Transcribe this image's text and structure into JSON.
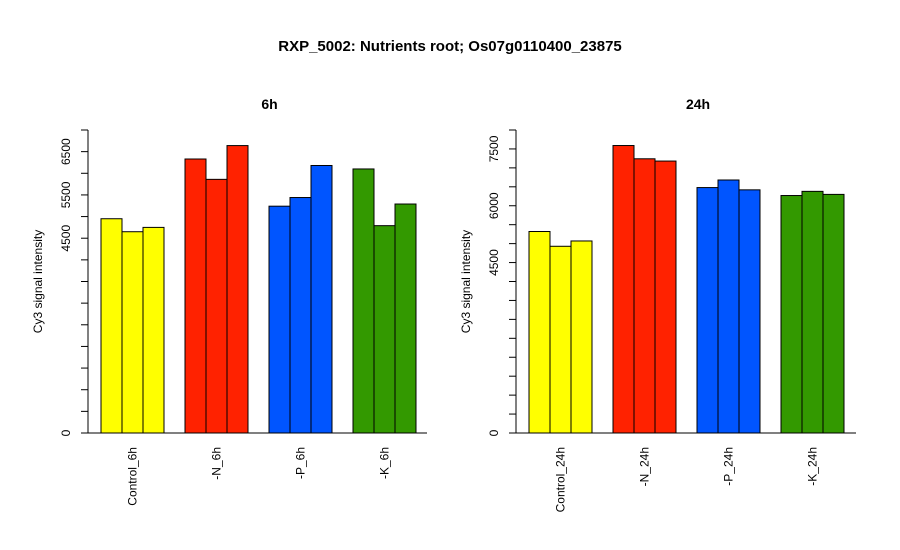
{
  "title": "RXP_5002: Nutrients root; Os07g0110400_23875",
  "chart_data": [
    {
      "type": "bar",
      "title": "6h",
      "ylabel": "Cy3 signal intensity",
      "ylim": [
        0,
        7000
      ],
      "yticks": [
        0,
        4500,
        5500,
        6500
      ],
      "grid": false,
      "groups": [
        {
          "label": "Control_6h",
          "color": "#FFFF00",
          "values": [
            4950,
            4650,
            4750
          ]
        },
        {
          "label": "-N_6h",
          "color": "#FF2200",
          "values": [
            6330,
            5860,
            6640
          ]
        },
        {
          "label": "-P_6h",
          "color": "#0055FF",
          "values": [
            5240,
            5440,
            6180
          ]
        },
        {
          "label": "-K_6h",
          "color": "#339900",
          "values": [
            6100,
            4790,
            5290
          ]
        }
      ]
    },
    {
      "type": "bar",
      "title": "24h",
      "ylabel": "Cy3 signal intensity",
      "ylim": [
        0,
        8000
      ],
      "yticks": [
        0,
        4500,
        6000,
        7500
      ],
      "grid": false,
      "groups": [
        {
          "label": "Control_24h",
          "color": "#FFFF00",
          "values": [
            5320,
            4930,
            5070
          ]
        },
        {
          "label": "-N_24h",
          "color": "#FF2200",
          "values": [
            7590,
            7240,
            7180
          ]
        },
        {
          "label": "-P_24h",
          "color": "#0055FF",
          "values": [
            6480,
            6680,
            6420
          ]
        },
        {
          "label": "-K_24h",
          "color": "#339900",
          "values": [
            6270,
            6380,
            6300
          ]
        }
      ]
    }
  ]
}
